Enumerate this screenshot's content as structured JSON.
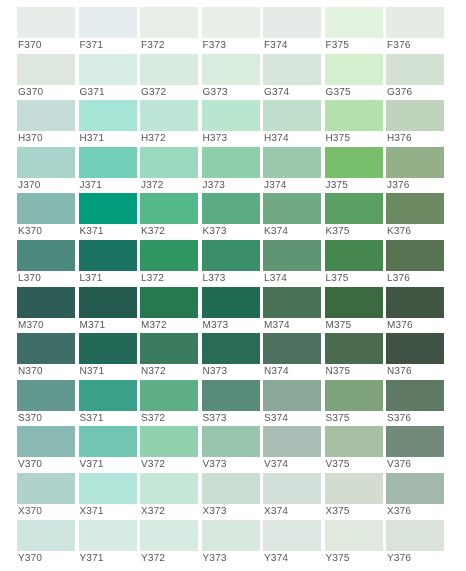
{
  "swatches": [
    {
      "code": "F370",
      "color": "#e9ede9"
    },
    {
      "code": "F371",
      "color": "#e5edee"
    },
    {
      "code": "F372",
      "color": "#e9eee8"
    },
    {
      "code": "F373",
      "color": "#e8f0e8"
    },
    {
      "code": "F374",
      "color": "#e7ebe7"
    },
    {
      "code": "F375",
      "color": "#e4f3df"
    },
    {
      "code": "F376",
      "color": "#e6ebe4"
    },
    {
      "code": "G370",
      "color": "#dde7df"
    },
    {
      "code": "G371",
      "color": "#d8ede6"
    },
    {
      "code": "G372",
      "color": "#d7ebe1"
    },
    {
      "code": "G373",
      "color": "#d9ecde"
    },
    {
      "code": "G374",
      "color": "#d7e6db"
    },
    {
      "code": "G375",
      "color": "#d3efce"
    },
    {
      "code": "G376",
      "color": "#d4e2d3"
    },
    {
      "code": "H370",
      "color": "#c4ddd8"
    },
    {
      "code": "H371",
      "color": "#a6e5d6"
    },
    {
      "code": "H372",
      "color": "#bee6d7"
    },
    {
      "code": "H373",
      "color": "#b9e6cf"
    },
    {
      "code": "H374",
      "color": "#bfdfcc"
    },
    {
      "code": "H375",
      "color": "#b3e0ad"
    },
    {
      "code": "H376",
      "color": "#bfd3bd"
    },
    {
      "code": "J370",
      "color": "#a8d4cb"
    },
    {
      "code": "J371",
      "color": "#72d0b9"
    },
    {
      "code": "J372",
      "color": "#9ad9be"
    },
    {
      "code": "J373",
      "color": "#8fd0ac"
    },
    {
      "code": "J374",
      "color": "#9bc9ad"
    },
    {
      "code": "J375",
      "color": "#78be6b"
    },
    {
      "code": "J376",
      "color": "#93b088"
    },
    {
      "code": "K370",
      "color": "#86b9b2"
    },
    {
      "code": "K371",
      "color": "#009c7c"
    },
    {
      "code": "K372",
      "color": "#55b88b"
    },
    {
      "code": "K373",
      "color": "#5bab85"
    },
    {
      "code": "K374",
      "color": "#70a983"
    },
    {
      "code": "K375",
      "color": "#5aa062"
    },
    {
      "code": "K376",
      "color": "#6b8a62"
    },
    {
      "code": "L370",
      "color": "#4c8a7f"
    },
    {
      "code": "L371",
      "color": "#1a7263"
    },
    {
      "code": "L372",
      "color": "#2f9664"
    },
    {
      "code": "L373",
      "color": "#3a8f69"
    },
    {
      "code": "L374",
      "color": "#5f9474"
    },
    {
      "code": "L375",
      "color": "#46864f"
    },
    {
      "code": "L376",
      "color": "#587352"
    },
    {
      "code": "M370",
      "color": "#2e5d58"
    },
    {
      "code": "M371",
      "color": "#235a4d"
    },
    {
      "code": "M372",
      "color": "#257850"
    },
    {
      "code": "M373",
      "color": "#216b50"
    },
    {
      "code": "M374",
      "color": "#4a7256"
    },
    {
      "code": "M375",
      "color": "#3b6a40"
    },
    {
      "code": "M376",
      "color": "#415642"
    },
    {
      "code": "N370",
      "color": "#3f6d67"
    },
    {
      "code": "N371",
      "color": "#226a57"
    },
    {
      "code": "N372",
      "color": "#3a7c5d"
    },
    {
      "code": "N373",
      "color": "#2a6b55"
    },
    {
      "code": "N374",
      "color": "#4d715e"
    },
    {
      "code": "N375",
      "color": "#4a6b4f"
    },
    {
      "code": "N376",
      "color": "#3f5244"
    },
    {
      "code": "S370",
      "color": "#639891"
    },
    {
      "code": "S371",
      "color": "#3ba088"
    },
    {
      "code": "S372",
      "color": "#5eae86"
    },
    {
      "code": "S373",
      "color": "#588c78"
    },
    {
      "code": "S374",
      "color": "#8aa897"
    },
    {
      "code": "S375",
      "color": "#7ea37b"
    },
    {
      "code": "S376",
      "color": "#5e7a65"
    },
    {
      "code": "V370",
      "color": "#8ab9b3"
    },
    {
      "code": "V371",
      "color": "#70c6b2"
    },
    {
      "code": "V372",
      "color": "#91d1b0"
    },
    {
      "code": "V373",
      "color": "#99c5ae"
    },
    {
      "code": "V374",
      "color": "#aac0b6"
    },
    {
      "code": "V375",
      "color": "#a7c0a3"
    },
    {
      "code": "V376",
      "color": "#718a7a"
    },
    {
      "code": "X370",
      "color": "#b0d2cc"
    },
    {
      "code": "X371",
      "color": "#b3e6db"
    },
    {
      "code": "X372",
      "color": "#c6e6d7"
    },
    {
      "code": "X373",
      "color": "#c9dfd3"
    },
    {
      "code": "X374",
      "color": "#d3e1da"
    },
    {
      "code": "X375",
      "color": "#d2ddcf"
    },
    {
      "code": "X376",
      "color": "#a2b8aa"
    },
    {
      "code": "Y370",
      "color": "#cfe5df"
    },
    {
      "code": "Y371",
      "color": "#d6ebe4"
    },
    {
      "code": "Y372",
      "color": "#d8ebe2"
    },
    {
      "code": "Y373",
      "color": "#d8e8df"
    },
    {
      "code": "Y374",
      "color": "#dde7e1"
    },
    {
      "code": "Y375",
      "color": "#dfe9dd"
    },
    {
      "code": "Y376",
      "color": "#d9e3dc"
    }
  ]
}
